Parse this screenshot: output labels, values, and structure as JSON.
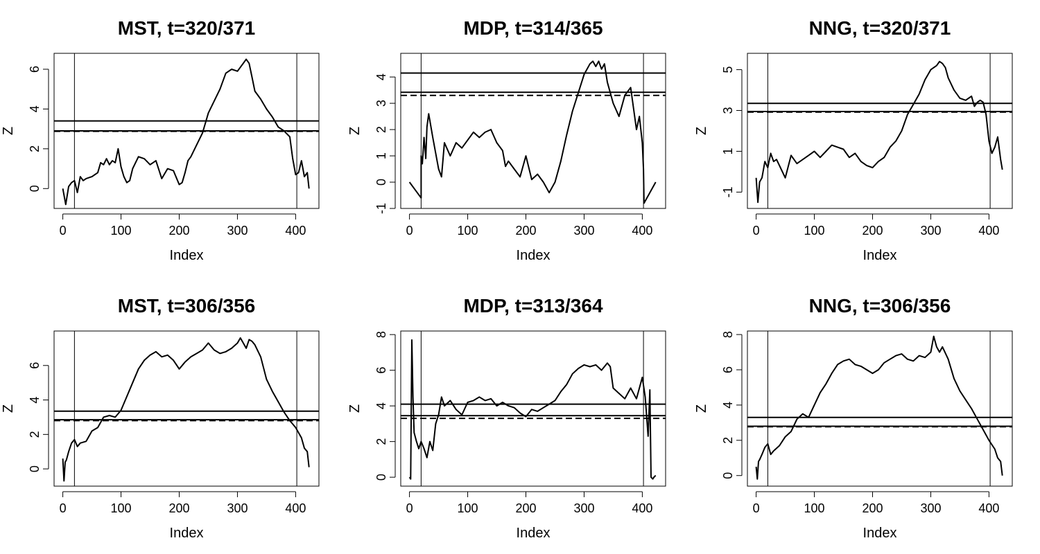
{
  "chart_data": [
    {
      "type": "line",
      "title": "MST, t=320/371",
      "xlabel": "Index",
      "ylabel": "Z",
      "xlim": [
        -15,
        440
      ],
      "ylim": [
        -1.0,
        6.8
      ],
      "xticks": [
        0,
        100,
        200,
        300,
        400
      ],
      "xtick_labels": [
        "0",
        "100",
        "200",
        "300",
        "400"
      ],
      "yticks": [
        0,
        2,
        4,
        6
      ],
      "ytick_labels": [
        "0",
        "2",
        "4",
        "6"
      ],
      "series": [
        {
          "x": [
            0,
            5,
            10,
            15,
            20,
            25,
            30,
            35,
            40,
            50,
            60,
            65,
            70,
            75,
            80,
            85,
            90,
            95,
            100,
            105,
            110,
            115,
            120,
            130,
            140,
            150,
            160,
            170,
            180,
            190,
            200,
            205,
            210,
            215,
            220,
            230,
            240,
            250,
            260,
            270,
            280,
            290,
            300,
            310,
            315,
            320,
            325,
            330,
            340,
            350,
            360,
            370,
            380,
            390,
            395,
            400,
            405,
            410,
            415,
            420,
            423
          ],
          "y": [
            0.0,
            -0.8,
            0.1,
            0.3,
            0.4,
            -0.2,
            0.6,
            0.4,
            0.5,
            0.6,
            0.8,
            1.3,
            1.2,
            1.5,
            1.2,
            1.4,
            1.3,
            2.0,
            1.1,
            0.6,
            0.3,
            0.4,
            1.0,
            1.6,
            1.5,
            1.2,
            1.4,
            0.5,
            1.0,
            0.9,
            0.2,
            0.3,
            0.8,
            1.4,
            1.6,
            2.2,
            2.8,
            3.8,
            4.4,
            5.0,
            5.8,
            6.0,
            5.9,
            6.3,
            6.5,
            6.3,
            5.6,
            4.9,
            4.5,
            4.0,
            3.6,
            3.1,
            2.9,
            2.6,
            1.5,
            0.7,
            0.8,
            1.4,
            0.6,
            0.8,
            0.0
          ]
        }
      ],
      "hlines": [
        {
          "y": 3.4,
          "style": "solid"
        },
        {
          "y": 2.9,
          "style": "solid"
        },
        {
          "y": 2.88,
          "style": "dashed"
        }
      ],
      "vlines": [
        20,
        402
      ]
    },
    {
      "type": "line",
      "title": "MDP, t=314/365",
      "xlabel": "Index",
      "ylabel": "Z",
      "xlim": [
        -15,
        440
      ],
      "ylim": [
        -1.0,
        4.9
      ],
      "xticks": [
        0,
        100,
        200,
        300,
        400
      ],
      "xtick_labels": [
        "0",
        "100",
        "200",
        "300",
        "400"
      ],
      "yticks": [
        -1,
        0,
        1,
        2,
        3,
        4
      ],
      "ytick_labels": [
        "-1",
        "0",
        "1",
        "2",
        "3",
        "4"
      ],
      "series": [
        {
          "x": [
            0,
            20,
            20,
            22,
            25,
            28,
            30,
            33,
            40,
            50,
            55,
            60,
            70,
            80,
            90,
            100,
            110,
            120,
            130,
            140,
            150,
            160,
            165,
            170,
            180,
            190,
            200,
            210,
            220,
            230,
            240,
            250,
            260,
            270,
            280,
            290,
            300,
            310,
            315,
            320,
            325,
            330,
            335,
            340,
            345,
            350,
            360,
            370,
            380,
            390,
            395,
            400,
            402,
            403,
            423
          ],
          "y": [
            0.0,
            -0.6,
            1.0,
            0.7,
            1.7,
            0.9,
            2.1,
            2.6,
            1.7,
            0.5,
            0.2,
            1.5,
            1.0,
            1.5,
            1.3,
            1.6,
            1.9,
            1.7,
            1.9,
            2.0,
            1.5,
            1.2,
            0.6,
            0.8,
            0.5,
            0.2,
            1.0,
            0.1,
            0.3,
            0.0,
            -0.4,
            0.0,
            0.8,
            1.8,
            2.7,
            3.4,
            4.1,
            4.5,
            4.6,
            4.4,
            4.6,
            4.3,
            4.5,
            3.8,
            3.4,
            3.0,
            2.5,
            3.3,
            3.6,
            2.0,
            2.5,
            1.5,
            0.5,
            -0.8,
            0.0
          ]
        }
      ],
      "hlines": [
        {
          "y": 4.15,
          "style": "solid"
        },
        {
          "y": 3.42,
          "style": "solid"
        },
        {
          "y": 3.3,
          "style": "dashed"
        }
      ],
      "vlines": [
        20,
        402
      ]
    },
    {
      "type": "line",
      "title": "NNG, t=320/371",
      "xlabel": "Index",
      "ylabel": "Z",
      "xlim": [
        -15,
        440
      ],
      "ylim": [
        -1.8,
        5.8
      ],
      "xticks": [
        0,
        100,
        200,
        300,
        400
      ],
      "xtick_labels": [
        "0",
        "100",
        "200",
        "300",
        "400"
      ],
      "yticks": [
        -1,
        1,
        3,
        5
      ],
      "ytick_labels": [
        "-1",
        "1",
        "3",
        "5"
      ],
      "series": [
        {
          "x": [
            0,
            3,
            6,
            10,
            15,
            20,
            25,
            30,
            35,
            40,
            50,
            60,
            70,
            80,
            90,
            100,
            110,
            120,
            130,
            140,
            150,
            160,
            170,
            180,
            190,
            200,
            210,
            220,
            230,
            240,
            250,
            260,
            270,
            280,
            290,
            300,
            310,
            315,
            320,
            325,
            330,
            340,
            350,
            360,
            370,
            375,
            380,
            385,
            390,
            395,
            400,
            405,
            410,
            415,
            420,
            423
          ],
          "y": [
            -0.3,
            -1.5,
            -0.5,
            -0.3,
            0.5,
            0.2,
            0.9,
            0.5,
            0.6,
            0.3,
            -0.3,
            0.8,
            0.4,
            0.6,
            0.8,
            1.0,
            0.7,
            1.0,
            1.3,
            1.2,
            1.1,
            0.7,
            0.9,
            0.5,
            0.3,
            0.2,
            0.5,
            0.7,
            1.2,
            1.5,
            2.0,
            2.8,
            3.3,
            3.8,
            4.5,
            5.0,
            5.2,
            5.4,
            5.3,
            5.1,
            4.6,
            4.0,
            3.6,
            3.5,
            3.7,
            3.2,
            3.4,
            3.5,
            3.4,
            2.8,
            1.5,
            0.9,
            1.2,
            1.7,
            0.6,
            0.1
          ]
        }
      ],
      "hlines": [
        {
          "y": 3.35,
          "style": "solid"
        },
        {
          "y": 2.95,
          "style": "solid"
        },
        {
          "y": 2.92,
          "style": "dashed"
        }
      ],
      "vlines": [
        20,
        402
      ]
    },
    {
      "type": "line",
      "title": "MST, t=306/356",
      "xlabel": "Index",
      "ylabel": "Z",
      "xlim": [
        -15,
        440
      ],
      "ylim": [
        -1.0,
        8.0
      ],
      "xticks": [
        0,
        100,
        200,
        300,
        400
      ],
      "xtick_labels": [
        "0",
        "100",
        "200",
        "300",
        "400"
      ],
      "yticks": [
        0,
        2,
        4,
        6
      ],
      "ytick_labels": [
        "0",
        "2",
        "4",
        "6"
      ],
      "series": [
        {
          "x": [
            0,
            2,
            4,
            6,
            10,
            15,
            20,
            25,
            30,
            40,
            50,
            60,
            70,
            80,
            90,
            100,
            110,
            120,
            130,
            140,
            150,
            160,
            170,
            180,
            190,
            200,
            210,
            220,
            230,
            240,
            250,
            260,
            270,
            280,
            290,
            300,
            305,
            310,
            315,
            320,
            325,
            330,
            340,
            350,
            360,
            370,
            380,
            390,
            400,
            410,
            415,
            420,
            423
          ],
          "y": [
            0.6,
            -0.7,
            0.4,
            0.5,
            1.0,
            1.5,
            1.7,
            1.3,
            1.5,
            1.6,
            2.2,
            2.4,
            3.0,
            3.1,
            3.0,
            3.4,
            4.2,
            5.0,
            5.8,
            6.3,
            6.6,
            6.8,
            6.5,
            6.6,
            6.3,
            5.8,
            6.2,
            6.5,
            6.7,
            6.9,
            7.3,
            6.9,
            6.7,
            6.8,
            7.0,
            7.3,
            7.6,
            7.3,
            7.0,
            7.5,
            7.4,
            7.2,
            6.5,
            5.2,
            4.5,
            3.9,
            3.3,
            2.8,
            2.4,
            1.8,
            1.2,
            1.0,
            0.1
          ]
        }
      ],
      "hlines": [
        {
          "y": 3.35,
          "style": "solid"
        },
        {
          "y": 2.85,
          "style": "solid"
        },
        {
          "y": 2.8,
          "style": "dashed"
        }
      ],
      "vlines": [
        20,
        402
      ]
    },
    {
      "type": "line",
      "title": "MDP, t=313/364",
      "xlabel": "Index",
      "ylabel": "Z",
      "xlim": [
        -15,
        440
      ],
      "ylim": [
        -0.5,
        8.2
      ],
      "xticks": [
        0,
        100,
        200,
        300,
        400
      ],
      "xtick_labels": [
        "0",
        "100",
        "200",
        "300",
        "400"
      ],
      "yticks": [
        0,
        2,
        4,
        6,
        8
      ],
      "ytick_labels": [
        "0",
        "2",
        "4",
        "6",
        "8"
      ],
      "series": [
        {
          "x": [
            0,
            2,
            4,
            6,
            8,
            12,
            16,
            20,
            25,
            30,
            35,
            40,
            45,
            50,
            55,
            60,
            70,
            80,
            90,
            100,
            110,
            120,
            130,
            140,
            150,
            160,
            170,
            180,
            190,
            200,
            210,
            220,
            230,
            240,
            250,
            260,
            270,
            280,
            290,
            300,
            310,
            320,
            330,
            340,
            345,
            350,
            360,
            370,
            380,
            390,
            400,
            405,
            410,
            413,
            415,
            418,
            420,
            423
          ],
          "y": [
            0.0,
            -0.1,
            7.7,
            4.5,
            2.5,
            2.0,
            1.6,
            2.0,
            1.6,
            1.1,
            2.0,
            1.5,
            3.0,
            3.5,
            4.5,
            4.0,
            4.3,
            3.8,
            3.5,
            4.2,
            4.3,
            4.5,
            4.3,
            4.4,
            4.0,
            4.2,
            4.0,
            3.9,
            3.6,
            3.4,
            3.8,
            3.7,
            3.9,
            4.1,
            4.3,
            4.8,
            5.2,
            5.8,
            6.1,
            6.3,
            6.2,
            6.3,
            6.0,
            6.4,
            6.2,
            5.0,
            4.7,
            4.4,
            5.0,
            4.4,
            5.6,
            4.5,
            2.3,
            4.9,
            0.0,
            -0.1,
            0.0,
            0.1
          ]
        }
      ],
      "hlines": [
        {
          "y": 4.1,
          "style": "solid"
        },
        {
          "y": 3.45,
          "style": "solid"
        },
        {
          "y": 3.3,
          "style": "dashed"
        }
      ],
      "vlines": [
        20,
        402
      ]
    },
    {
      "type": "line",
      "title": "NNG, t=306/356",
      "xlabel": "Index",
      "ylabel": "Z",
      "xlim": [
        -15,
        440
      ],
      "ylim": [
        -0.6,
        8.2
      ],
      "xticks": [
        0,
        100,
        200,
        300,
        400
      ],
      "xtick_labels": [
        "0",
        "100",
        "200",
        "300",
        "400"
      ],
      "yticks": [
        0,
        2,
        4,
        6,
        8
      ],
      "ytick_labels": [
        "0",
        "2",
        "4",
        "6",
        "8"
      ],
      "series": [
        {
          "x": [
            0,
            2,
            4,
            6,
            10,
            15,
            20,
            25,
            30,
            40,
            50,
            60,
            70,
            80,
            90,
            100,
            110,
            120,
            130,
            140,
            150,
            160,
            170,
            180,
            190,
            200,
            210,
            220,
            230,
            240,
            250,
            260,
            270,
            280,
            290,
            300,
            305,
            310,
            315,
            320,
            330,
            340,
            350,
            360,
            370,
            380,
            390,
            400,
            410,
            415,
            420,
            423
          ],
          "y": [
            0.5,
            -0.2,
            0.8,
            0.9,
            1.2,
            1.6,
            1.8,
            1.2,
            1.4,
            1.7,
            2.2,
            2.5,
            3.2,
            3.5,
            3.3,
            4.0,
            4.7,
            5.2,
            5.8,
            6.3,
            6.5,
            6.6,
            6.3,
            6.2,
            6.0,
            5.8,
            6.0,
            6.4,
            6.6,
            6.8,
            6.9,
            6.6,
            6.5,
            6.8,
            6.7,
            7.0,
            7.9,
            7.3,
            7.0,
            7.3,
            6.6,
            5.5,
            4.8,
            4.3,
            3.8,
            3.2,
            2.6,
            2.0,
            1.5,
            1.0,
            0.8,
            0.0
          ]
        }
      ],
      "hlines": [
        {
          "y": 3.3,
          "style": "solid"
        },
        {
          "y": 2.8,
          "style": "solid"
        },
        {
          "y": 2.77,
          "style": "dashed"
        }
      ],
      "vlines": [
        20,
        402
      ]
    }
  ]
}
